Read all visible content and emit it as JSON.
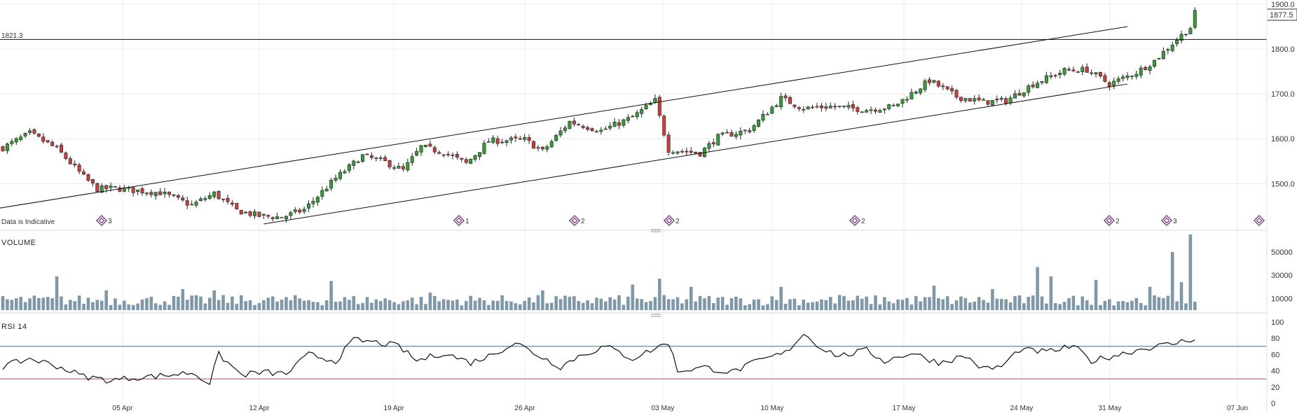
{
  "colors": {
    "up": "#3a9a3a",
    "down": "#c64040",
    "wick": "#222222",
    "volume": "#7f98a8",
    "rsi_line": "#111111",
    "rsi_upper": "#4a6f84",
    "rsi_lower": "#d94040",
    "grid": "#ececec",
    "marker": "#7a3e82"
  },
  "labels": {
    "hline_value": "1821.3",
    "last_price": "1877.5",
    "indicative": "Data is Indicative",
    "volume_title": "VOLUME",
    "rsi_title": "RSI 14"
  },
  "x_ticks": [
    "05 Apr",
    "12 Apr",
    "19 Apr",
    "26 Apr",
    "03 May",
    "10 May",
    "17 May",
    "24 May",
    "31 May",
    "07 Jun"
  ],
  "event_markers": [
    {
      "count": "3"
    },
    {
      "count": "1"
    },
    {
      "count": "2"
    },
    {
      "count": "2"
    },
    {
      "count": "2"
    },
    {
      "count": "2"
    },
    {
      "count": "3"
    },
    {
      "count": ""
    }
  ],
  "chart_data": [
    {
      "type": "candlestick",
      "title": "",
      "ylim": [
        1410,
        1900
      ],
      "yticks": [
        1500.0,
        1600.0,
        1700.0,
        1800.0,
        1900.0
      ],
      "ytick_labels": [
        "1500.0",
        "1600.0",
        "1700.0",
        "1800.0",
        "1900.0"
      ],
      "horizontal_line": 1821.3,
      "last_value": 1877.5,
      "channel_upper": {
        "from": {
          "bar": -1,
          "price": 1445
        },
        "to": {
          "bar": 250,
          "price": 1850
        }
      },
      "channel_lower": {
        "from": {
          "bar": 58,
          "price": 1410
        },
        "to": {
          "bar": 250,
          "price": 1722
        }
      },
      "waypoints": [
        [
          0,
          1580
        ],
        [
          6,
          1612
        ],
        [
          12,
          1578
        ],
        [
          18,
          1515
        ],
        [
          21,
          1488
        ],
        [
          25,
          1490
        ],
        [
          29,
          1485
        ],
        [
          35,
          1480
        ],
        [
          42,
          1452
        ],
        [
          47,
          1478
        ],
        [
          52,
          1440
        ],
        [
          57,
          1428
        ],
        [
          62,
          1425
        ],
        [
          67,
          1442
        ],
        [
          74,
          1512
        ],
        [
          80,
          1562
        ],
        [
          85,
          1548
        ],
        [
          89,
          1530
        ],
        [
          93,
          1582
        ],
        [
          98,
          1570
        ],
        [
          103,
          1545
        ],
        [
          108,
          1595
        ],
        [
          116,
          1598
        ],
        [
          120,
          1572
        ],
        [
          126,
          1638
        ],
        [
          133,
          1618
        ],
        [
          140,
          1648
        ],
        [
          145,
          1685
        ],
        [
          148,
          1576
        ],
        [
          155,
          1568
        ],
        [
          159,
          1604
        ],
        [
          166,
          1620
        ],
        [
          173,
          1690
        ],
        [
          178,
          1668
        ],
        [
          184,
          1672
        ],
        [
          192,
          1665
        ],
        [
          198,
          1672
        ],
        [
          206,
          1730
        ],
        [
          212,
          1694
        ],
        [
          218,
          1682
        ],
        [
          223,
          1685
        ],
        [
          229,
          1722
        ],
        [
          236,
          1752
        ],
        [
          241,
          1754
        ],
        [
          246,
          1722
        ],
        [
          252,
          1748
        ],
        [
          256,
          1774
        ],
        [
          261,
          1822
        ],
        [
          264,
          1848
        ],
        [
          265,
          1880
        ]
      ],
      "volume": {
        "title": "VOLUME",
        "ylim": [
          0,
          68000
        ],
        "yticks": [
          10000,
          30000,
          50000
        ],
        "ytick_labels": [
          "10000",
          "30000",
          "50000"
        ],
        "spikes": [
          [
            0,
            12000
          ],
          [
            12,
            29000
          ],
          [
            23,
            17000
          ],
          [
            40,
            18000
          ],
          [
            47,
            17000
          ],
          [
            73,
            25000
          ],
          [
            95,
            15000
          ],
          [
            120,
            17000
          ],
          [
            140,
            22000
          ],
          [
            146,
            27000
          ],
          [
            153,
            20000
          ],
          [
            173,
            20000
          ],
          [
            186,
            13000
          ],
          [
            207,
            21000
          ],
          [
            220,
            18000
          ],
          [
            230,
            37000
          ],
          [
            233,
            29000
          ],
          [
            243,
            26000
          ],
          [
            255,
            20000
          ],
          [
            260,
            50000
          ],
          [
            262,
            24000
          ],
          [
            264,
            65000
          ]
        ]
      },
      "rsi": {
        "title": "RSI 14",
        "ylim": [
          0,
          100
        ],
        "yticks": [
          0,
          20,
          40,
          60,
          80,
          100
        ],
        "ytick_labels": [
          "0",
          "20",
          "40",
          "60",
          "80",
          "100"
        ],
        "overbought": 70,
        "oversold": 30,
        "waypoints": [
          [
            0,
            45
          ],
          [
            6,
            55
          ],
          [
            12,
            46
          ],
          [
            18,
            33
          ],
          [
            24,
            28
          ],
          [
            30,
            32
          ],
          [
            36,
            34
          ],
          [
            42,
            38
          ],
          [
            46,
            25
          ],
          [
            48,
            60
          ],
          [
            53,
            35
          ],
          [
            58,
            38
          ],
          [
            63,
            36
          ],
          [
            68,
            60
          ],
          [
            74,
            52
          ],
          [
            78,
            78
          ],
          [
            84,
            74
          ],
          [
            88,
            70
          ],
          [
            92,
            52
          ],
          [
            98,
            62
          ],
          [
            104,
            50
          ],
          [
            108,
            58
          ],
          [
            114,
            75
          ],
          [
            118,
            62
          ],
          [
            124,
            45
          ],
          [
            128,
            58
          ],
          [
            134,
            70
          ],
          [
            140,
            55
          ],
          [
            148,
            75
          ],
          [
            150,
            40
          ],
          [
            156,
            44
          ],
          [
            162,
            38
          ],
          [
            168,
            52
          ],
          [
            174,
            62
          ],
          [
            178,
            86
          ],
          [
            182,
            68
          ],
          [
            186,
            58
          ],
          [
            192,
            65
          ],
          [
            196,
            52
          ],
          [
            202,
            62
          ],
          [
            208,
            50
          ],
          [
            214,
            58
          ],
          [
            218,
            42
          ],
          [
            222,
            45
          ],
          [
            226,
            66
          ],
          [
            232,
            63
          ],
          [
            238,
            70
          ],
          [
            242,
            52
          ],
          [
            248,
            60
          ],
          [
            254,
            68
          ],
          [
            260,
            73
          ],
          [
            265,
            80
          ]
        ]
      }
    }
  ]
}
